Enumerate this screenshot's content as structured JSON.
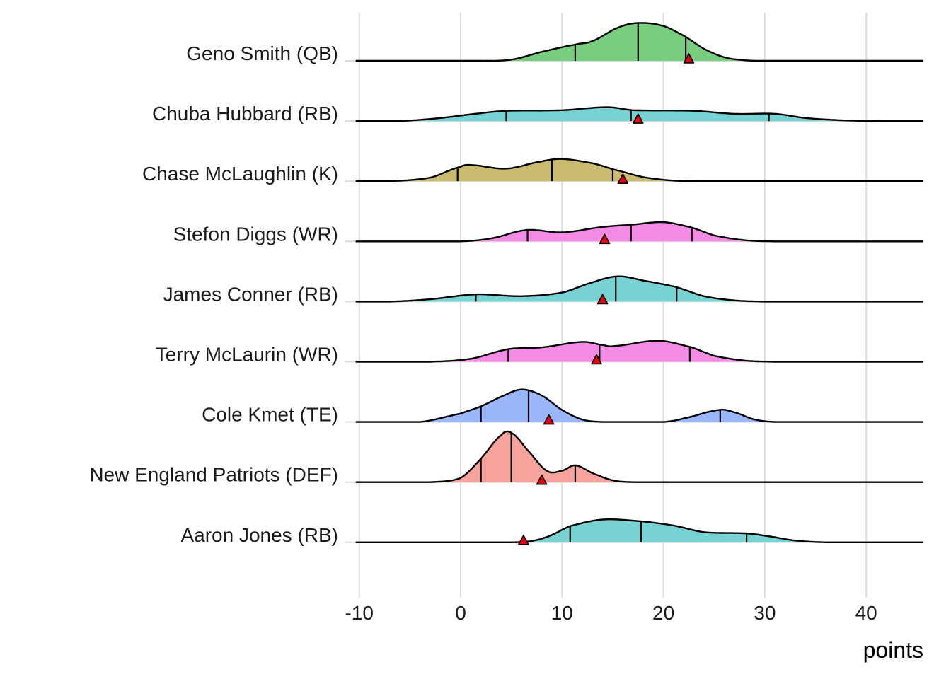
{
  "chart_data": {
    "type": "ridgeline",
    "title": "",
    "xlabel": "points",
    "ylabel": "",
    "xlim": [
      -10,
      45
    ],
    "x_ticks": [
      -10,
      0,
      10,
      20,
      30,
      40
    ],
    "x_tick_labels": [
      "-10",
      "0",
      "10",
      "20",
      "30",
      "40"
    ],
    "grid": true,
    "marker_shape": "triangle",
    "marker_color": "#e8000b",
    "series": [
      {
        "name": "Geno Smith (QB)",
        "color": "#74cd7c",
        "density": [
          [
            2,
            0
          ],
          [
            5,
            0.02
          ],
          [
            8,
            0.15
          ],
          [
            11.3,
            0.27
          ],
          [
            13,
            0.33
          ],
          [
            15.5,
            0.55
          ],
          [
            17.5,
            0.63
          ],
          [
            20,
            0.58
          ],
          [
            22.2,
            0.4
          ],
          [
            24,
            0.2
          ],
          [
            26,
            0.06
          ],
          [
            28,
            0.01
          ],
          [
            30,
            0
          ]
        ],
        "quantiles": [
          11.3,
          17.5,
          22.2
        ],
        "marker": 22.5
      },
      {
        "name": "Chuba Hubbard (RB)",
        "color": "#74d1d3",
        "density": [
          [
            -6,
            0
          ],
          [
            -2,
            0.05
          ],
          [
            2,
            0.13
          ],
          [
            4.5,
            0.17
          ],
          [
            10,
            0.18
          ],
          [
            14.5,
            0.23
          ],
          [
            17,
            0.18
          ],
          [
            23,
            0.17
          ],
          [
            27,
            0.12
          ],
          [
            31,
            0.12
          ],
          [
            34,
            0.05
          ],
          [
            38,
            0.01
          ],
          [
            42,
            0
          ]
        ],
        "quantiles": [
          4.5,
          16.8,
          30.4
        ],
        "marker": 17.5
      },
      {
        "name": "Chase McLaughlin (K)",
        "color": "#c9bb6b",
        "density": [
          [
            -7,
            0
          ],
          [
            -3,
            0.06
          ],
          [
            0,
            0.24
          ],
          [
            1,
            0.27
          ],
          [
            4.5,
            0.21
          ],
          [
            8,
            0.33
          ],
          [
            10,
            0.37
          ],
          [
            13,
            0.3
          ],
          [
            15,
            0.2
          ],
          [
            18,
            0.07
          ],
          [
            21,
            0.01
          ],
          [
            24,
            0
          ]
        ],
        "quantiles": [
          -0.3,
          9.0,
          15.0
        ],
        "marker": 16.0
      },
      {
        "name": "Stefon Diggs (WR)",
        "color": "#f48ae6",
        "density": [
          [
            0,
            0
          ],
          [
            3,
            0.05
          ],
          [
            6.5,
            0.19
          ],
          [
            10,
            0.15
          ],
          [
            14,
            0.24
          ],
          [
            17,
            0.28
          ],
          [
            20,
            0.32
          ],
          [
            22.8,
            0.23
          ],
          [
            25,
            0.1
          ],
          [
            28,
            0.02
          ],
          [
            31,
            0
          ]
        ],
        "quantiles": [
          6.6,
          16.8,
          22.8
        ],
        "marker": 14.2
      },
      {
        "name": "James Conner (RB)",
        "color": "#74d1d3",
        "density": [
          [
            -7,
            0
          ],
          [
            -3,
            0.04
          ],
          [
            1.5,
            0.12
          ],
          [
            6,
            0.09
          ],
          [
            10,
            0.15
          ],
          [
            13,
            0.32
          ],
          [
            15.5,
            0.42
          ],
          [
            18,
            0.35
          ],
          [
            21.3,
            0.24
          ],
          [
            24,
            0.09
          ],
          [
            27,
            0.02
          ],
          [
            30,
            0
          ]
        ],
        "quantiles": [
          1.5,
          15.3,
          21.3
        ],
        "marker": 14.0
      },
      {
        "name": "Terry McLaurin (WR)",
        "color": "#f48ae6",
        "density": [
          [
            -3,
            0
          ],
          [
            1,
            0.05
          ],
          [
            4.7,
            0.21
          ],
          [
            8,
            0.24
          ],
          [
            12,
            0.33
          ],
          [
            14,
            0.28
          ],
          [
            15,
            0.26
          ],
          [
            19.5,
            0.35
          ],
          [
            22.8,
            0.24
          ],
          [
            25,
            0.1
          ],
          [
            28,
            0.02
          ],
          [
            31,
            0
          ]
        ],
        "quantiles": [
          4.7,
          13.7,
          22.6
        ],
        "marker": 13.4
      },
      {
        "name": "Cole Kmet (TE)",
        "color": "#97b6fa",
        "density": [
          [
            -4,
            0
          ],
          [
            0,
            0.14
          ],
          [
            2,
            0.26
          ],
          [
            4,
            0.42
          ],
          [
            6,
            0.54
          ],
          [
            8,
            0.44
          ],
          [
            10,
            0.2
          ],
          [
            12,
            0.04
          ],
          [
            14,
            0
          ],
          [
            20,
            0
          ],
          [
            22,
            0.06
          ],
          [
            25.5,
            0.2
          ],
          [
            27,
            0.16
          ],
          [
            29,
            0.04
          ],
          [
            31,
            0
          ]
        ],
        "quantiles": [
          2.0,
          6.7,
          25.6
        ],
        "marker": 8.7
      },
      {
        "name": "New England Patriots (DEF)",
        "color": "#f6a19b",
        "density": [
          [
            -3,
            0
          ],
          [
            0,
            0.07
          ],
          [
            2,
            0.39
          ],
          [
            4,
            0.78
          ],
          [
            5,
            0.82
          ],
          [
            6.5,
            0.55
          ],
          [
            8.5,
            0.19
          ],
          [
            10,
            0.19
          ],
          [
            11.3,
            0.28
          ],
          [
            13,
            0.15
          ],
          [
            15,
            0.03
          ],
          [
            17,
            0
          ]
        ],
        "quantiles": [
          2.0,
          5.0,
          11.3
        ],
        "marker": 8.0
      },
      {
        "name": "Aaron Jones (RB)",
        "color": "#74d1d3",
        "density": [
          [
            3,
            0
          ],
          [
            6.5,
            0.01
          ],
          [
            8.5,
            0.09
          ],
          [
            10.8,
            0.27
          ],
          [
            14,
            0.38
          ],
          [
            17.8,
            0.35
          ],
          [
            21,
            0.28
          ],
          [
            24,
            0.17
          ],
          [
            28.2,
            0.15
          ],
          [
            30,
            0.11
          ],
          [
            33,
            0.03
          ],
          [
            36,
            0
          ]
        ],
        "quantiles": [
          10.8,
          17.8,
          28.2
        ],
        "marker": 6.2
      }
    ]
  }
}
